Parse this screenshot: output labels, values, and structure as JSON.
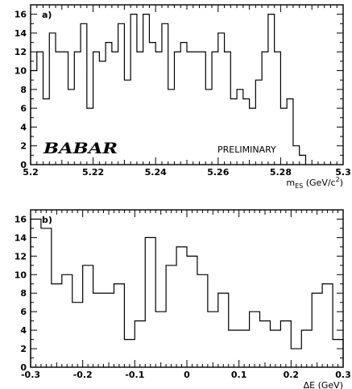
{
  "chart_data": [
    {
      "type": "histogram",
      "panel_label": "a)",
      "xlabel": {
        "main": "m",
        "sub": "ES",
        "unit_pre": " (GeV/c",
        "unit_sup": "2",
        "unit_post": ")"
      },
      "xlim": [
        5.2,
        5.3
      ],
      "ylim": [
        0,
        17
      ],
      "xticks": [
        "5.2",
        "5.22",
        "5.24",
        "5.26",
        "5.28",
        "5.3"
      ],
      "yticks": [
        "0",
        "2",
        "4",
        "6",
        "8",
        "10",
        "12",
        "14",
        "16"
      ],
      "bin_edges_start": 5.2,
      "bin_width": 0.002,
      "values": [
        10,
        12,
        7,
        14,
        12,
        12,
        8,
        12,
        15,
        6,
        12,
        11,
        13,
        12,
        15,
        9,
        16,
        12,
        16,
        13,
        12,
        15,
        8,
        12,
        13,
        12,
        12,
        12,
        8,
        12,
        14,
        12,
        7,
        8,
        7,
        6,
        9,
        12,
        16,
        12,
        6,
        7,
        2,
        1
      ],
      "logo": "BABAR",
      "annotation": "PRELIMINARY"
    },
    {
      "type": "histogram",
      "panel_label": "b)",
      "xlabel": {
        "main": "ΔE (GeV)"
      },
      "xlim": [
        -0.3,
        0.3
      ],
      "ylim": [
        0,
        17
      ],
      "xticks": [
        "-0.3",
        "-0.2",
        "-0.1",
        "0",
        "0.1",
        "0.2",
        "0.3"
      ],
      "yticks": [
        "0",
        "2",
        "4",
        "6",
        "8",
        "10",
        "12",
        "14",
        "16"
      ],
      "bin_edges_start": -0.3,
      "bin_width": 0.02,
      "values": [
        16,
        15,
        9,
        10,
        7,
        11,
        8,
        8,
        9,
        3,
        5,
        14,
        6,
        11,
        13,
        12,
        10,
        6,
        8,
        4,
        4,
        6,
        5,
        4,
        5,
        2,
        4,
        8,
        9,
        3
      ]
    }
  ]
}
